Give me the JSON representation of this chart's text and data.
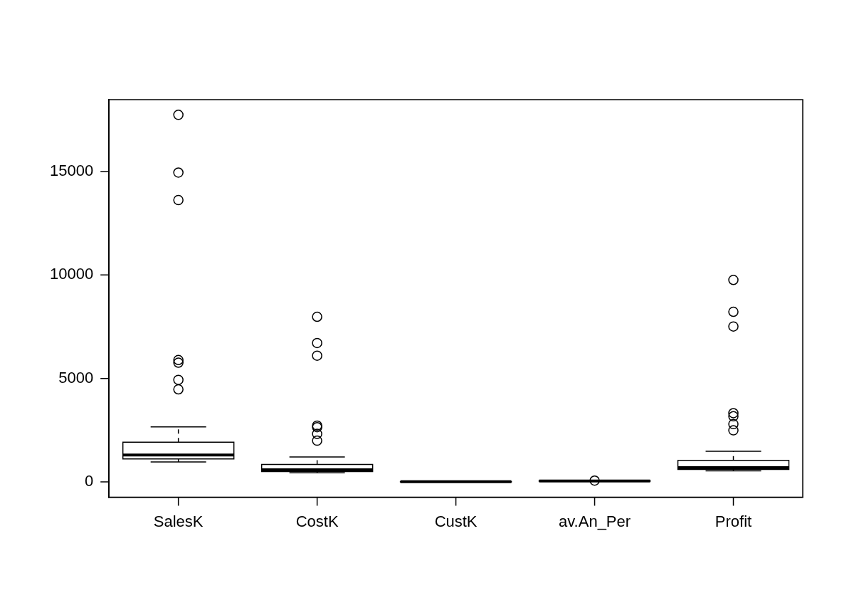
{
  "chart_data": {
    "type": "box",
    "categories": [
      "SalesK",
      "CostK",
      "CustK",
      "av.An_Per",
      "Profit"
    ],
    "boxes": [
      {
        "low": 960,
        "q1": 1110,
        "median": 1300,
        "q3": 1920,
        "high": 2660,
        "outliers": [
          17740,
          14950,
          13620,
          5890,
          5760,
          4930,
          4470
        ]
      },
      {
        "low": 440,
        "q1": 500,
        "median": 580,
        "q3": 840,
        "high": 1200,
        "outliers": [
          7980,
          6710,
          6100,
          2720,
          2640,
          2320,
          1990
        ]
      },
      {
        "low": 0,
        "q1": 2,
        "median": 5,
        "q3": 8,
        "high": 15
      },
      {
        "low": 20,
        "q1": 30,
        "median": 40,
        "q3": 50,
        "high": 70,
        "outliers": [
          60
        ]
      },
      {
        "low": 530,
        "q1": 600,
        "median": 690,
        "q3": 1040,
        "high": 1480,
        "outliers": [
          9760,
          8220,
          7510,
          3320,
          3170,
          2790,
          2490
        ]
      }
    ],
    "color": "#000000",
    "ylim": [
      -745,
      18475
    ],
    "yticks": [
      0,
      5000,
      10000,
      15000
    ],
    "grid": false,
    "legend": false
  }
}
